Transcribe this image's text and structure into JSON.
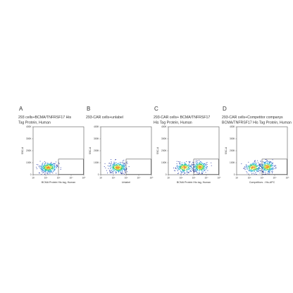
{
  "chart_data": [
    {
      "type": "scatter",
      "letter": "A",
      "title_lines": [
        "293 cells+BCMA/TNFRSF17 His",
        "Tag Protein, Human"
      ],
      "xlabel": "BCMA Protein His tag, Human",
      "ylabel": "SSC-A",
      "x_scale": "log",
      "xlim": [
        10,
        100000
      ],
      "y_ticks": [
        "400K",
        "300K",
        "200K",
        "100K",
        "0"
      ],
      "ylim": [
        0,
        400000
      ],
      "gate": {
        "x": [
          1000,
          100000
        ],
        "y": [
          0,
          130000
        ]
      },
      "population": [
        {
          "x": 160,
          "y": 60000,
          "sx": 0.35,
          "sy": 22000,
          "n": 360
        }
      ]
    },
    {
      "type": "scatter",
      "letter": "B",
      "title_lines": [
        "293-CAR cells+unlabel"
      ],
      "xlabel": "Unlabel",
      "ylabel": "SSC-A",
      "x_scale": "log",
      "xlim": [
        10,
        100000
      ],
      "y_ticks": [
        "400K",
        "300K",
        "200K",
        "100K",
        "0"
      ],
      "ylim": [
        0,
        400000
      ],
      "gate": {
        "x": [
          1000,
          100000
        ],
        "y": [
          0,
          130000
        ]
      },
      "population": [
        {
          "x": 220,
          "y": 60000,
          "sx": 0.35,
          "sy": 22000,
          "n": 360
        }
      ]
    },
    {
      "type": "scatter",
      "letter": "C",
      "title_lines": [
        "293-CAR cells+ BCMA/TNFRSF17",
        "His Tag Protein, Human"
      ],
      "xlabel": "BCMA Protein His tag, Human",
      "ylabel": "SSC-A",
      "x_scale": "log",
      "xlim": [
        10,
        100000
      ],
      "y_ticks": [
        "400K",
        "300K",
        "200K",
        "100K",
        "0"
      ],
      "ylim": [
        0,
        400000
      ],
      "gate": {
        "x": [
          1000,
          100000
        ],
        "y": [
          0,
          130000
        ]
      },
      "population": [
        {
          "x": 180,
          "y": 60000,
          "sx": 0.32,
          "sy": 22000,
          "n": 260
        },
        {
          "x": 3200,
          "y": 65000,
          "sx": 0.28,
          "sy": 24000,
          "n": 300
        }
      ]
    },
    {
      "type": "scatter",
      "letter": "D",
      "title_lines": [
        "293-CAR cells+Competitor companys",
        "BCMA/TNFRSF17 His Tag Protein, Human"
      ],
      "xlabel": "Competitors - His-APC",
      "ylabel": "SSC-A",
      "x_scale": "log",
      "xlim": [
        10,
        100000
      ],
      "y_ticks": [
        "400K",
        "300K",
        "200K",
        "100K",
        "0"
      ],
      "ylim": [
        0,
        400000
      ],
      "gate": {
        "x": [
          1000,
          100000
        ],
        "y": [
          0,
          130000
        ]
      },
      "population": [
        {
          "x": 200,
          "y": 60000,
          "sx": 0.32,
          "sy": 22000,
          "n": 240
        },
        {
          "x": 2600,
          "y": 65000,
          "sx": 0.28,
          "sy": 24000,
          "n": 300
        }
      ]
    }
  ],
  "x_tick_labels": [
    "10",
    "10²",
    "10³",
    "10⁴",
    "10⁵"
  ],
  "x_tick_values": [
    10,
    100,
    1000,
    10000,
    100000
  ],
  "colors": {
    "frame": "#555555",
    "gate": "#333333",
    "text": "#333333",
    "density": [
      "#1f2f9e",
      "#2a7fd4",
      "#22c0d8",
      "#3cc46a",
      "#d7e23a",
      "#f08a24"
    ]
  }
}
